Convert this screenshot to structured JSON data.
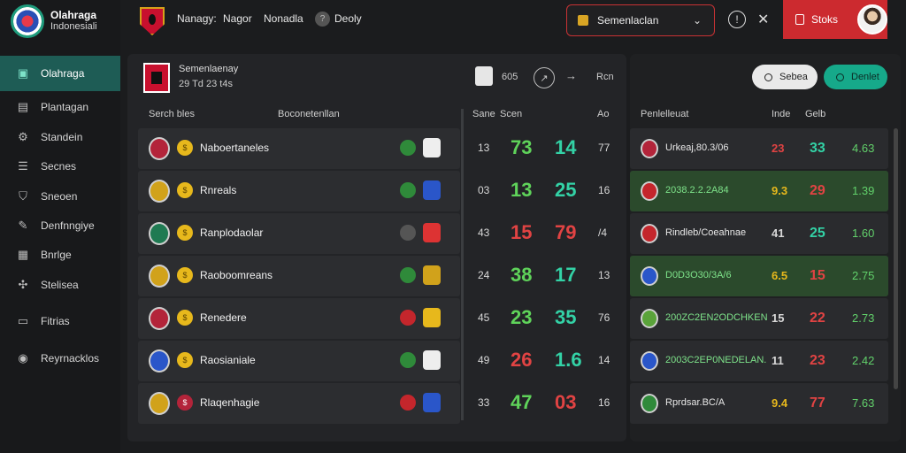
{
  "colors": {
    "accent": "#1e5c55",
    "red": "#cc2a2f",
    "green": "#33d2a6",
    "amber": "#e7b81c"
  },
  "brand": {
    "line1": "Olahraga",
    "line2": "Indonesiali"
  },
  "sidebar": {
    "items": [
      {
        "label": "Olahraga",
        "icon": "dashboard-icon",
        "active": true
      },
      {
        "label": "Plantagan",
        "icon": "clipboard-icon"
      },
      {
        "label": "Standein",
        "icon": "gear-icon"
      },
      {
        "label": "Secnes",
        "icon": "list-icon"
      },
      {
        "label": "Sneoen",
        "icon": "shield-icon"
      },
      {
        "label": "Denfnngiye",
        "icon": "pencil-icon"
      },
      {
        "label": "Bnrlge",
        "icon": "calendar-icon"
      },
      {
        "label": "Stelisea",
        "icon": "chart-icon"
      },
      {
        "label": "Fitrias",
        "icon": "filter-icon"
      },
      {
        "label": "Reyrnacklos",
        "icon": "user-circle-icon"
      }
    ]
  },
  "topbar": {
    "links": [
      "Nanagy:",
      "Nagor",
      "Nonadla",
      "Deoly"
    ],
    "select_value": "Semenlaclan",
    "red_button": "Stoks"
  },
  "panel": {
    "title": "Semenlaenay",
    "subtitle": "29  Td  23 t4s",
    "num": "605",
    "end": "Rcn",
    "col_team": "Serch bles",
    "col_group": "Boconetenllan",
    "col_a": "Sane",
    "col_b": "Scen",
    "col_c": "Ao"
  },
  "rows": [
    {
      "team": "Naboertaneles",
      "n1": "13",
      "n2": "73",
      "n3": "14",
      "n4": "77",
      "n2color": "#5fd35a"
    },
    {
      "team": "Rnreals",
      "n1": "03",
      "n2": "13",
      "n3": "25",
      "n4": "16",
      "n2color": "#5fd35a"
    },
    {
      "team": "Ranplodaolar",
      "n1": "43",
      "n2": "15",
      "n3": "79",
      "n4": "/4",
      "n2color": "#e14343"
    },
    {
      "team": "Raoboomreans",
      "n1": "24",
      "n2": "38",
      "n3": "17",
      "n4": "13",
      "n2color": "#5fd35a"
    },
    {
      "team": "Renedere",
      "n1": "45",
      "n2": "23",
      "n3": "35",
      "n4": "76",
      "n2color": "#5fd35a"
    },
    {
      "team": "Raosianiale",
      "n1": "49",
      "n2": "26",
      "n3": "1.6",
      "n4": "14",
      "n2color": "#e14343"
    },
    {
      "team": "Rlaqenhagie",
      "n1": "33",
      "n2": "47",
      "n3": "03",
      "n4": "16",
      "n2color": "#5fd35a",
      "n3color": "#e14343"
    }
  ],
  "right": {
    "btn_light": "Sebea",
    "btn_green": "Denlet",
    "col_name": "Penlelleuat",
    "col_a": "Inde",
    "col_b": "Gelb",
    "rows": [
      {
        "name": "Urkeaj,80.3/06",
        "a": "23",
        "b": "33",
        "c": "4.63",
        "hl": false,
        "acolor": "#e14343",
        "bcolor": "#33d2a6"
      },
      {
        "name": "2038.2.2.2A84",
        "a": "9.3",
        "b": "29",
        "c": "1.39",
        "hl": true,
        "acolor": "#e7b81c",
        "bcolor": "#e14343"
      },
      {
        "name": "Rindleb/Coeahnae",
        "a": "41",
        "b": "25",
        "c": "1.60",
        "hl": false,
        "acolor": "#d8d8d8",
        "bcolor": "#33d2a6"
      },
      {
        "name": "D0D3O30/3A/6",
        "a": "6.5",
        "b": "15",
        "c": "2.75",
        "hl": true,
        "acolor": "#e7b81c",
        "bcolor": "#e14343"
      },
      {
        "name": "200ZC2EN2ODCHKEN",
        "a": "15",
        "b": "22",
        "c": "2.73",
        "hl": false,
        "acolor": "#d8d8d8",
        "bcolor": "#e14343"
      },
      {
        "name": "2003C2EP0NEDELAN.",
        "a": "11",
        "b": "23",
        "c": "2.42",
        "hl": false,
        "acolor": "#d8d8d8",
        "bcolor": "#e14343"
      },
      {
        "name": "Rprdsar.BC/A",
        "a": "9.4",
        "b": "77",
        "c": "7.63",
        "hl": false,
        "acolor": "#e7b81c",
        "bcolor": "#e14343"
      }
    ]
  }
}
